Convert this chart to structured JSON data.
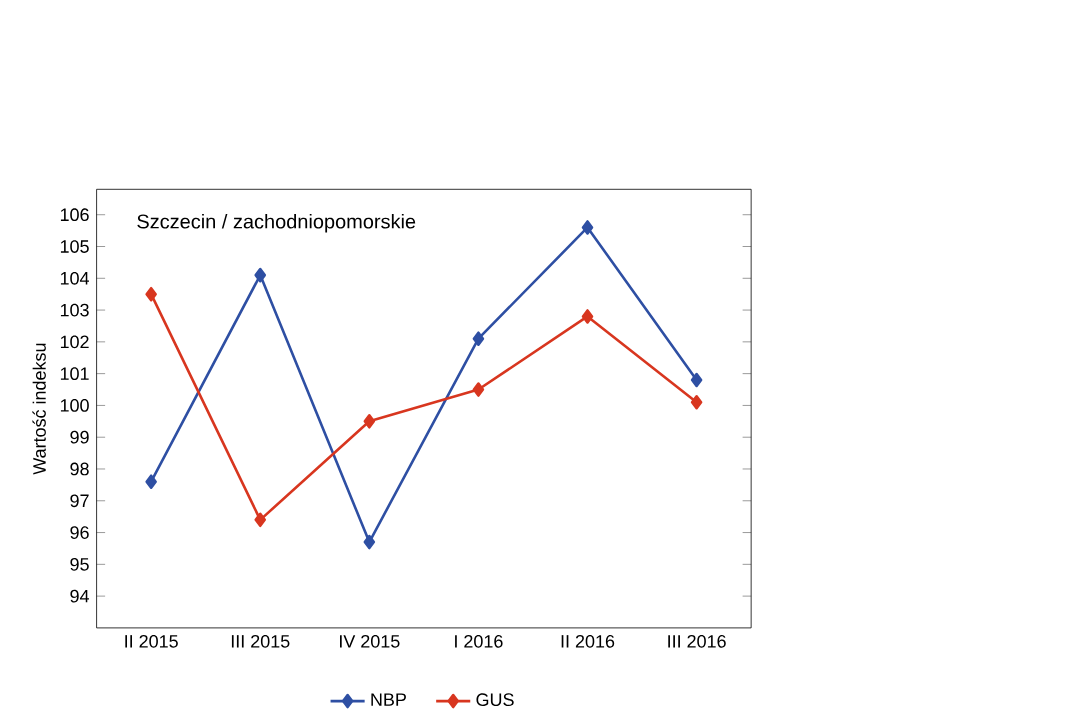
{
  "chart_data": {
    "type": "line",
    "title": "Szczecin / zachodniopomorskie",
    "ylabel": "Wartość indeksu",
    "categories": [
      "II 2015",
      "III 2015",
      "IV 2015",
      "I 2016",
      "II 2016",
      "III 2016"
    ],
    "series": [
      {
        "name": "NBP",
        "color": "#2e4fa3",
        "values": [
          97.6,
          104.1,
          95.7,
          102.1,
          105.6,
          100.8
        ]
      },
      {
        "name": "GUS",
        "color": "#d8361f",
        "values": [
          103.5,
          96.4,
          99.5,
          100.5,
          102.8,
          100.1
        ]
      }
    ],
    "ylim": [
      93,
      106.8
    ],
    "yticks": [
      94,
      95,
      96,
      97,
      98,
      99,
      100,
      101,
      102,
      103,
      104,
      105,
      106
    ],
    "marker": "diamond",
    "legend": "bottom",
    "grid": false
  }
}
